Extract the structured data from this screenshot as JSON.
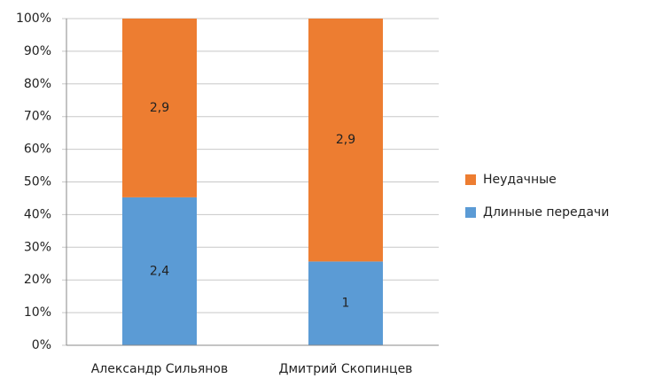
{
  "chart_data": {
    "type": "bar",
    "stack": "percent",
    "categories": [
      "Александр Сильянов",
      "Дмитрий Скопинцев"
    ],
    "series": [
      {
        "name": "Длинные передачи",
        "color": "#5b9bd5",
        "values": [
          2.4,
          1
        ],
        "value_labels": [
          "2,4",
          "1"
        ]
      },
      {
        "name": "Неудачные",
        "color": "#ed7d31",
        "values": [
          2.9,
          2.9
        ],
        "value_labels": [
          "2,9",
          "2,9"
        ]
      }
    ],
    "ylim": [
      0,
      100
    ],
    "yticks": [
      {
        "value": 0,
        "label": "0%"
      },
      {
        "value": 10,
        "label": "10%"
      },
      {
        "value": 20,
        "label": "20%"
      },
      {
        "value": 30,
        "label": "30%"
      },
      {
        "value": 40,
        "label": "40%"
      },
      {
        "value": 50,
        "label": "50%"
      },
      {
        "value": 60,
        "label": "60%"
      },
      {
        "value": 70,
        "label": "70%"
      },
      {
        "value": 80,
        "label": "80%"
      },
      {
        "value": 90,
        "label": "90%"
      },
      {
        "value": 100,
        "label": "100%"
      }
    ],
    "grid": true,
    "legend": "right"
  }
}
